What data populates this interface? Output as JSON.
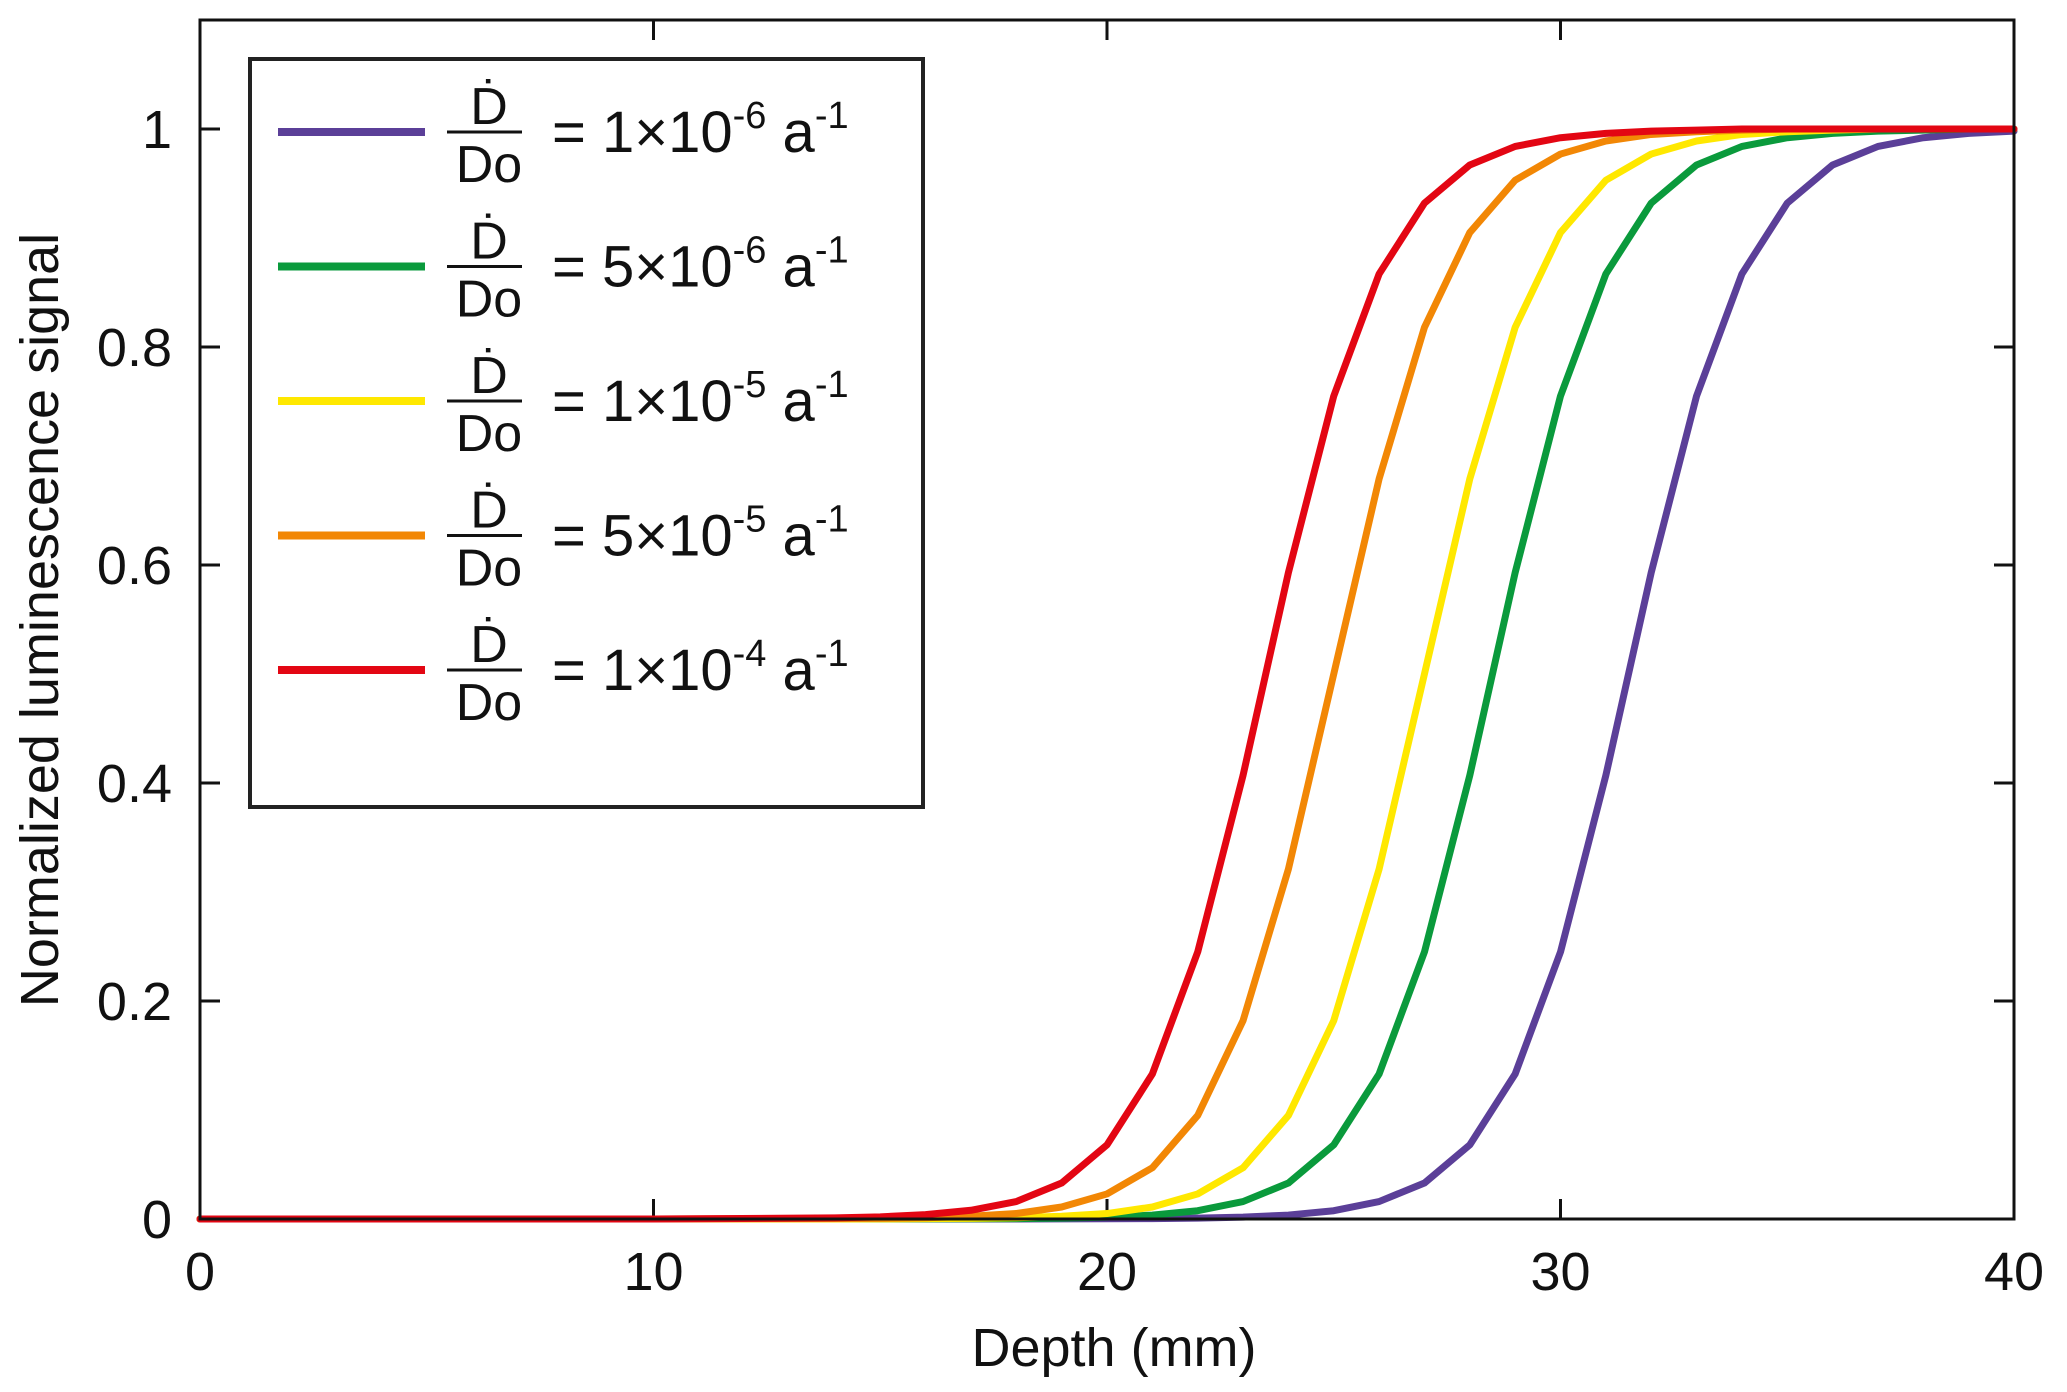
{
  "chart_data": {
    "type": "line",
    "title": "",
    "xlabel": "Depth (mm)",
    "ylabel": "Normalized luminescence signal",
    "xlim": [
      0,
      40
    ],
    "ylim": [
      0,
      1.1
    ],
    "xticks": [
      "0",
      "10",
      "20",
      "30",
      "40"
    ],
    "yticks": [
      "0",
      "0.2",
      "0.4",
      "0.6",
      "0.8",
      "1"
    ],
    "grid": false,
    "legend_placement": "top-left",
    "x": [
      0,
      10,
      14,
      15,
      16,
      17,
      18,
      19,
      20,
      21,
      22,
      23,
      24,
      25,
      26,
      27,
      28,
      29,
      30,
      31,
      32,
      33,
      34,
      35,
      36,
      37,
      38,
      39,
      40
    ],
    "series": [
      {
        "name": "Ḋ/Do = 1×10-6 a-1",
        "color": "#5b3f98",
        "legend": {
          "num": "Ḋ",
          "den": "Do",
          "eq": "= 1",
          "times": "×",
          "base": "10",
          "exp": "-6",
          "unit": "a",
          "unit_exp": "-1"
        },
        "values": [
          0,
          0,
          0,
          0,
          0,
          0,
          0,
          0.0001,
          0.0002,
          0.0004,
          0.0008,
          0.0017,
          0.0036,
          0.0076,
          0.016,
          0.033,
          0.068,
          0.133,
          0.245,
          0.407,
          0.593,
          0.755,
          0.867,
          0.932,
          0.967,
          0.984,
          0.992,
          0.996,
          0.998
        ]
      },
      {
        "name": "Ḋ/Do = 5×10-6 a-1",
        "color": "#0a9a3c",
        "legend": {
          "num": "Ḋ",
          "den": "Do",
          "eq": "= 5",
          "times": "×",
          "base": "10",
          "exp": "-6",
          "unit": "a",
          "unit_exp": "-1"
        },
        "values": [
          0,
          0,
          0,
          0,
          0.0001,
          0.0002,
          0.0004,
          0.0008,
          0.0017,
          0.0036,
          0.0076,
          0.016,
          0.033,
          0.068,
          0.133,
          0.245,
          0.407,
          0.593,
          0.755,
          0.867,
          0.932,
          0.967,
          0.984,
          0.992,
          0.996,
          0.998,
          0.999,
          1,
          1
        ]
      },
      {
        "name": "Ḋ/Do = 1×10-5 a-1",
        "color": "#ffe800",
        "legend": {
          "num": "Ḋ",
          "den": "Do",
          "eq": "= 1",
          "times": "×",
          "base": "10",
          "exp": "-5",
          "unit": "a",
          "unit_exp": "-1"
        },
        "values": [
          0,
          0,
          0,
          0.0001,
          0.0003,
          0.0006,
          0.0012,
          0.0025,
          0.005,
          0.011,
          0.023,
          0.047,
          0.095,
          0.182,
          0.321,
          0.5,
          0.679,
          0.818,
          0.905,
          0.953,
          0.977,
          0.989,
          0.995,
          0.9975,
          0.999,
          1,
          1,
          1,
          1
        ]
      },
      {
        "name": "Ḋ/Do = 5×10-5 a-1",
        "color": "#f28705",
        "legend": {
          "num": "Ḋ",
          "den": "Do",
          "eq": "= 5",
          "times": "×",
          "base": "10",
          "exp": "-5",
          "unit": "a",
          "unit_exp": "-1"
        },
        "values": [
          0,
          0,
          0.0003,
          0.0006,
          0.0012,
          0.0025,
          0.005,
          0.011,
          0.023,
          0.047,
          0.095,
          0.182,
          0.321,
          0.5,
          0.679,
          0.818,
          0.905,
          0.953,
          0.977,
          0.989,
          0.995,
          0.9975,
          0.999,
          1,
          1,
          1,
          1,
          1,
          1
        ]
      },
      {
        "name": "Ḋ/Do = 1×10-4 a-1",
        "color": "#e30613",
        "legend": {
          "num": "Ḋ",
          "den": "Do",
          "eq": "= 1",
          "times": "×",
          "base": "10",
          "exp": "-4",
          "unit": "a",
          "unit_exp": "-1"
        },
        "values": [
          0,
          0,
          0.001,
          0.002,
          0.004,
          0.008,
          0.016,
          0.033,
          0.068,
          0.133,
          0.245,
          0.407,
          0.593,
          0.755,
          0.867,
          0.932,
          0.967,
          0.984,
          0.992,
          0.996,
          0.998,
          0.999,
          1,
          1,
          1,
          1,
          1,
          1,
          1
        ]
      }
    ]
  }
}
